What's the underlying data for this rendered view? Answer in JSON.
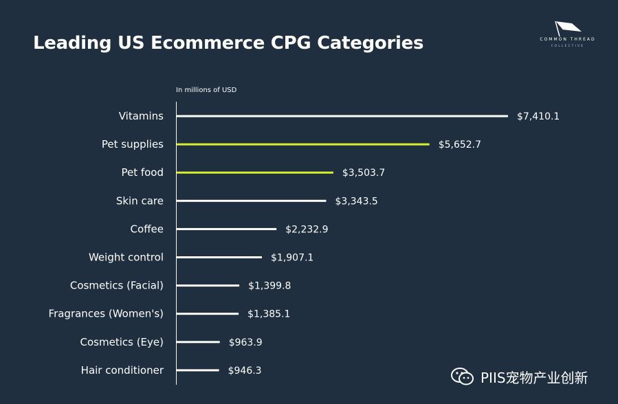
{
  "title": "Leading US Ecommerce CPG Categories",
  "logo": {
    "name": "COMMON THREAD",
    "sub": "COLLECTIVE"
  },
  "watermark": {
    "text": "PIIS宠物产业创新",
    "icon": "wechat-icon"
  },
  "colors": {
    "background": "#1f2f3f",
    "bar_default": "#ffffff",
    "bar_highlight": "#d8f12e",
    "axis": "#ffffff"
  },
  "chart_data": {
    "type": "bar",
    "orientation": "horizontal",
    "unit_label": "In millions of USD",
    "categories": [
      "Vitamins",
      "Pet supplies",
      "Pet food",
      "Skin care",
      "Coffee",
      "Weight control",
      "Cosmetics (Facial)",
      "Fragrances (Women's)",
      "Cosmetics (Eye)",
      "Hair conditioner"
    ],
    "values": [
      7410.1,
      5652.7,
      3503.7,
      3343.5,
      2232.9,
      1907.1,
      1399.8,
      1385.1,
      963.9,
      946.3
    ],
    "value_labels": [
      "$7,410.1",
      "$5,652.7",
      "$3,503.7",
      "$3,343.5",
      "$2,232.9",
      "$1,907.1",
      "$1,399.8",
      "$1,385.1",
      "$963.9",
      "$946.3"
    ],
    "highlighted": [
      "Pet supplies",
      "Pet food"
    ],
    "xlim": [
      0,
      7410.1
    ],
    "grid": false,
    "legend": "none"
  }
}
